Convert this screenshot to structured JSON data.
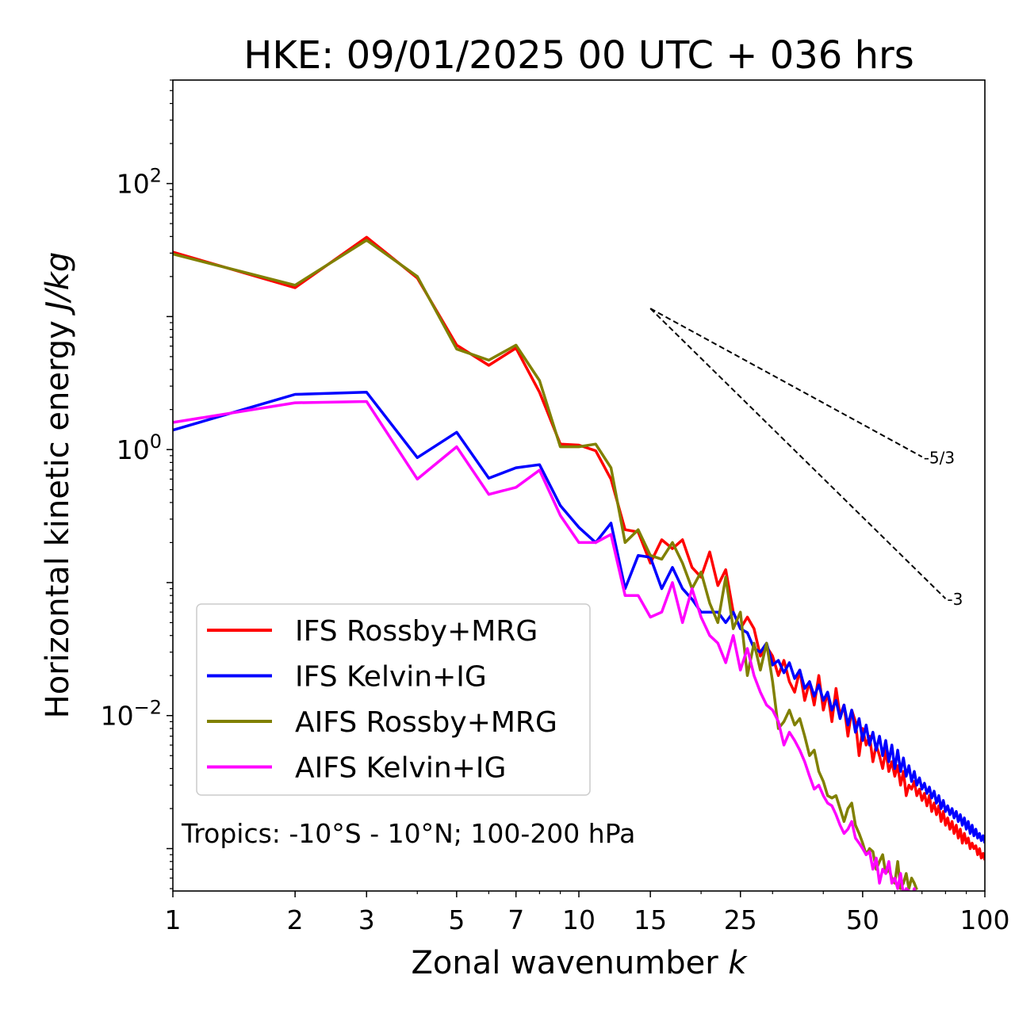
{
  "chart_data": {
    "type": "line",
    "title": "HKE: 09/01/2025 00 UTC + 036 hrs",
    "xlabel": "Zonal wavenumber",
    "xlabel_var": "k",
    "ylabel": "Horizontal kinetic energy",
    "ylabel_unit": "J/kg",
    "xscale": "log",
    "yscale": "log",
    "xlim": [
      1,
      100
    ],
    "ylim": [
      0.00048,
      600
    ],
    "x_ticks": [
      1,
      2,
      3,
      5,
      7,
      10,
      15,
      25,
      50,
      100
    ],
    "x_tick_labels": [
      "1",
      "2",
      "3",
      "5",
      "7",
      "10",
      "15",
      "25",
      "50",
      "100"
    ],
    "y_ticks": [
      0.01,
      1,
      100
    ],
    "y_tick_labels": [
      {
        "base": "10",
        "exp": "−2"
      },
      {
        "base": "10",
        "exp": "0"
      },
      {
        "base": "10",
        "exp": "2"
      }
    ],
    "annotation": "Tropics: -10°S - 10°N; 100-200 hPa",
    "legend_position": "lower-left",
    "reference_slopes": [
      {
        "label": "-5/3",
        "slope": -1.6667,
        "x0": 15,
        "y0": 11.5,
        "x1": 70
      },
      {
        "label": "-3",
        "slope": -3,
        "x0": 15,
        "y0": 11.5,
        "x1": 80
      }
    ],
    "series": [
      {
        "name": "IFS Rossby+MRG",
        "color": "#ff0000",
        "x": [
          1,
          2,
          3,
          4,
          5,
          6,
          7,
          8,
          9,
          10,
          11,
          12,
          13,
          14,
          15,
          16,
          17,
          18,
          19,
          20,
          21,
          22,
          23,
          24,
          25,
          26,
          27,
          28,
          29,
          30,
          31,
          32,
          33,
          34,
          35,
          36,
          37,
          38,
          39,
          40,
          41,
          42,
          43,
          44,
          45,
          46,
          47,
          48,
          49,
          50,
          51,
          52,
          53,
          54,
          55,
          56,
          57,
          58,
          59,
          60,
          61,
          62,
          63,
          64,
          65,
          66,
          67,
          68,
          69,
          70,
          71,
          72,
          73,
          74,
          75,
          76,
          77,
          78,
          79,
          80,
          81,
          82,
          83,
          84,
          85,
          86,
          87,
          88,
          89,
          90,
          91,
          92,
          93,
          94,
          95,
          96,
          97,
          98,
          99,
          100
        ],
        "y": [
          30.5,
          16.5,
          39.5,
          19.5,
          6.1,
          4.3,
          5.8,
          2.7,
          1.1,
          1.08,
          0.98,
          0.6,
          0.25,
          0.24,
          0.14,
          0.21,
          0.18,
          0.21,
          0.13,
          0.11,
          0.17,
          0.095,
          0.125,
          0.06,
          0.045,
          0.055,
          0.045,
          0.028,
          0.033,
          0.028,
          0.02,
          0.026,
          0.018,
          0.015,
          0.022,
          0.013,
          0.018,
          0.012,
          0.02,
          0.011,
          0.015,
          0.009,
          0.016,
          0.01,
          0.012,
          0.007,
          0.011,
          0.009,
          0.005,
          0.008,
          0.006,
          0.007,
          0.0045,
          0.006,
          0.005,
          0.004,
          0.0055,
          0.0038,
          0.0045,
          0.0035,
          0.0042,
          0.003,
          0.0038,
          0.0025,
          0.003,
          0.0028,
          0.0032,
          0.0025,
          0.0028,
          0.0023,
          0.0026,
          0.0021,
          0.0025,
          0.0019,
          0.0022,
          0.0018,
          0.0021,
          0.0016,
          0.0019,
          0.0015,
          0.0017,
          0.0014,
          0.0016,
          0.0013,
          0.0015,
          0.0012,
          0.0014,
          0.0011,
          0.0013,
          0.0011,
          0.0012,
          0.001,
          0.0011,
          0.001,
          0.00105,
          0.0009,
          0.001,
          0.00085,
          0.00092,
          0.00082
        ]
      },
      {
        "name": "IFS Kelvin+IG",
        "color": "#0000ff",
        "x": [
          1,
          2,
          3,
          4,
          5,
          6,
          7,
          8,
          9,
          10,
          11,
          12,
          13,
          14,
          15,
          16,
          17,
          18,
          19,
          20,
          21,
          22,
          23,
          24,
          25,
          26,
          27,
          28,
          29,
          30,
          31,
          32,
          33,
          34,
          35,
          36,
          37,
          38,
          39,
          40,
          41,
          42,
          43,
          44,
          45,
          46,
          47,
          48,
          49,
          50,
          51,
          52,
          53,
          54,
          55,
          56,
          57,
          58,
          59,
          60,
          61,
          62,
          63,
          64,
          65,
          66,
          67,
          68,
          69,
          70,
          71,
          72,
          73,
          74,
          75,
          76,
          77,
          78,
          79,
          80,
          81,
          82,
          83,
          84,
          85,
          86,
          87,
          88,
          89,
          90,
          91,
          92,
          93,
          94,
          95,
          96,
          97,
          98,
          99,
          100
        ],
        "y": [
          1.4,
          2.6,
          2.7,
          0.87,
          1.35,
          0.61,
          0.73,
          0.77,
          0.38,
          0.26,
          0.2,
          0.28,
          0.09,
          0.16,
          0.155,
          0.09,
          0.13,
          0.09,
          0.075,
          0.06,
          0.06,
          0.06,
          0.05,
          0.06,
          0.045,
          0.042,
          0.032,
          0.03,
          0.035,
          0.024,
          0.026,
          0.021,
          0.025,
          0.019,
          0.022,
          0.016,
          0.018,
          0.014,
          0.017,
          0.013,
          0.015,
          0.011,
          0.013,
          0.0095,
          0.012,
          0.0085,
          0.011,
          0.0075,
          0.0095,
          0.0065,
          0.0085,
          0.006,
          0.0075,
          0.0055,
          0.007,
          0.005,
          0.0065,
          0.0045,
          0.006,
          0.004,
          0.0055,
          0.0038,
          0.0048,
          0.0035,
          0.0042,
          0.0032,
          0.0038,
          0.003,
          0.0034,
          0.0028,
          0.0031,
          0.0026,
          0.0029,
          0.0024,
          0.0027,
          0.0022,
          0.0025,
          0.002,
          0.0023,
          0.0019,
          0.0021,
          0.0018,
          0.002,
          0.0017,
          0.0019,
          0.0016,
          0.0018,
          0.0015,
          0.0017,
          0.0014,
          0.0016,
          0.0013,
          0.0015,
          0.00125,
          0.0014,
          0.0012,
          0.0013,
          0.00115,
          0.00125,
          0.0011
        ]
      },
      {
        "name": "AIFS Rossby+MRG",
        "color": "#808000",
        "x": [
          1,
          2,
          3,
          4,
          5,
          6,
          7,
          8,
          9,
          10,
          11,
          12,
          13,
          14,
          15,
          16,
          17,
          18,
          19,
          20,
          21,
          22,
          23,
          24,
          25,
          26,
          27,
          28,
          29,
          30,
          31,
          32,
          33,
          34,
          35,
          36,
          37,
          38,
          39,
          40,
          41,
          42,
          43,
          44,
          45,
          46,
          47,
          48,
          49,
          50,
          51,
          52,
          53,
          54,
          55,
          56,
          57,
          58,
          59,
          60,
          61,
          62,
          63,
          64,
          65,
          66,
          67,
          68
        ],
        "y": [
          29.5,
          17.2,
          37.5,
          20.0,
          5.7,
          4.7,
          6.1,
          3.3,
          1.05,
          1.05,
          1.1,
          0.73,
          0.2,
          0.25,
          0.16,
          0.15,
          0.2,
          0.14,
          0.09,
          0.12,
          0.07,
          0.05,
          0.11,
          0.045,
          0.06,
          0.02,
          0.035,
          0.022,
          0.035,
          0.018,
          0.008,
          0.009,
          0.011,
          0.0085,
          0.0095,
          0.007,
          0.005,
          0.0055,
          0.0038,
          0.0032,
          0.0025,
          0.0024,
          0.0025,
          0.002,
          0.0016,
          0.002,
          0.0022,
          0.0015,
          0.0013,
          0.0011,
          0.0009,
          0.001,
          0.00095,
          0.0007,
          0.0008,
          0.0009,
          0.00065,
          0.0007,
          0.0006,
          0.00055,
          0.0008,
          0.0005,
          0.00055,
          0.00065,
          0.0005,
          0.0006,
          0.00055,
          0.00049
        ]
      },
      {
        "name": "AIFS Kelvin+IG",
        "color": "#ff00ff",
        "x": [
          1,
          2,
          3,
          4,
          5,
          6,
          7,
          8,
          9,
          10,
          11,
          12,
          13,
          14,
          15,
          16,
          17,
          18,
          19,
          20,
          21,
          22,
          23,
          24,
          25,
          26,
          27,
          28,
          29,
          30,
          31,
          32,
          33,
          34,
          35,
          36,
          37,
          38,
          39,
          40,
          41,
          42,
          43,
          44,
          45,
          46,
          47,
          48,
          49,
          50,
          51,
          52,
          53,
          54,
          55,
          56,
          57,
          58,
          59,
          60,
          61,
          62,
          63,
          64,
          65,
          66,
          67,
          68,
          69,
          70
        ],
        "y": [
          1.6,
          2.25,
          2.3,
          0.6,
          1.05,
          0.46,
          0.52,
          0.7,
          0.32,
          0.2,
          0.2,
          0.23,
          0.08,
          0.08,
          0.055,
          0.06,
          0.1,
          0.05,
          0.09,
          0.055,
          0.04,
          0.035,
          0.025,
          0.04,
          0.022,
          0.032,
          0.02,
          0.015,
          0.012,
          0.011,
          0.009,
          0.006,
          0.0075,
          0.0065,
          0.0055,
          0.0045,
          0.0035,
          0.0028,
          0.003,
          0.0025,
          0.0022,
          0.0021,
          0.0018,
          0.0015,
          0.0013,
          0.0014,
          0.0016,
          0.0012,
          0.0011,
          0.001,
          0.0009,
          0.00095,
          0.0007,
          0.00085,
          0.00055,
          0.0007,
          0.00065,
          0.0008,
          0.00055,
          0.0006,
          0.0005,
          0.00065,
          0.00045,
          0.0005,
          0.00048,
          0.00042,
          0.0005,
          0.0004,
          0.00045,
          0.0004
        ]
      }
    ]
  }
}
